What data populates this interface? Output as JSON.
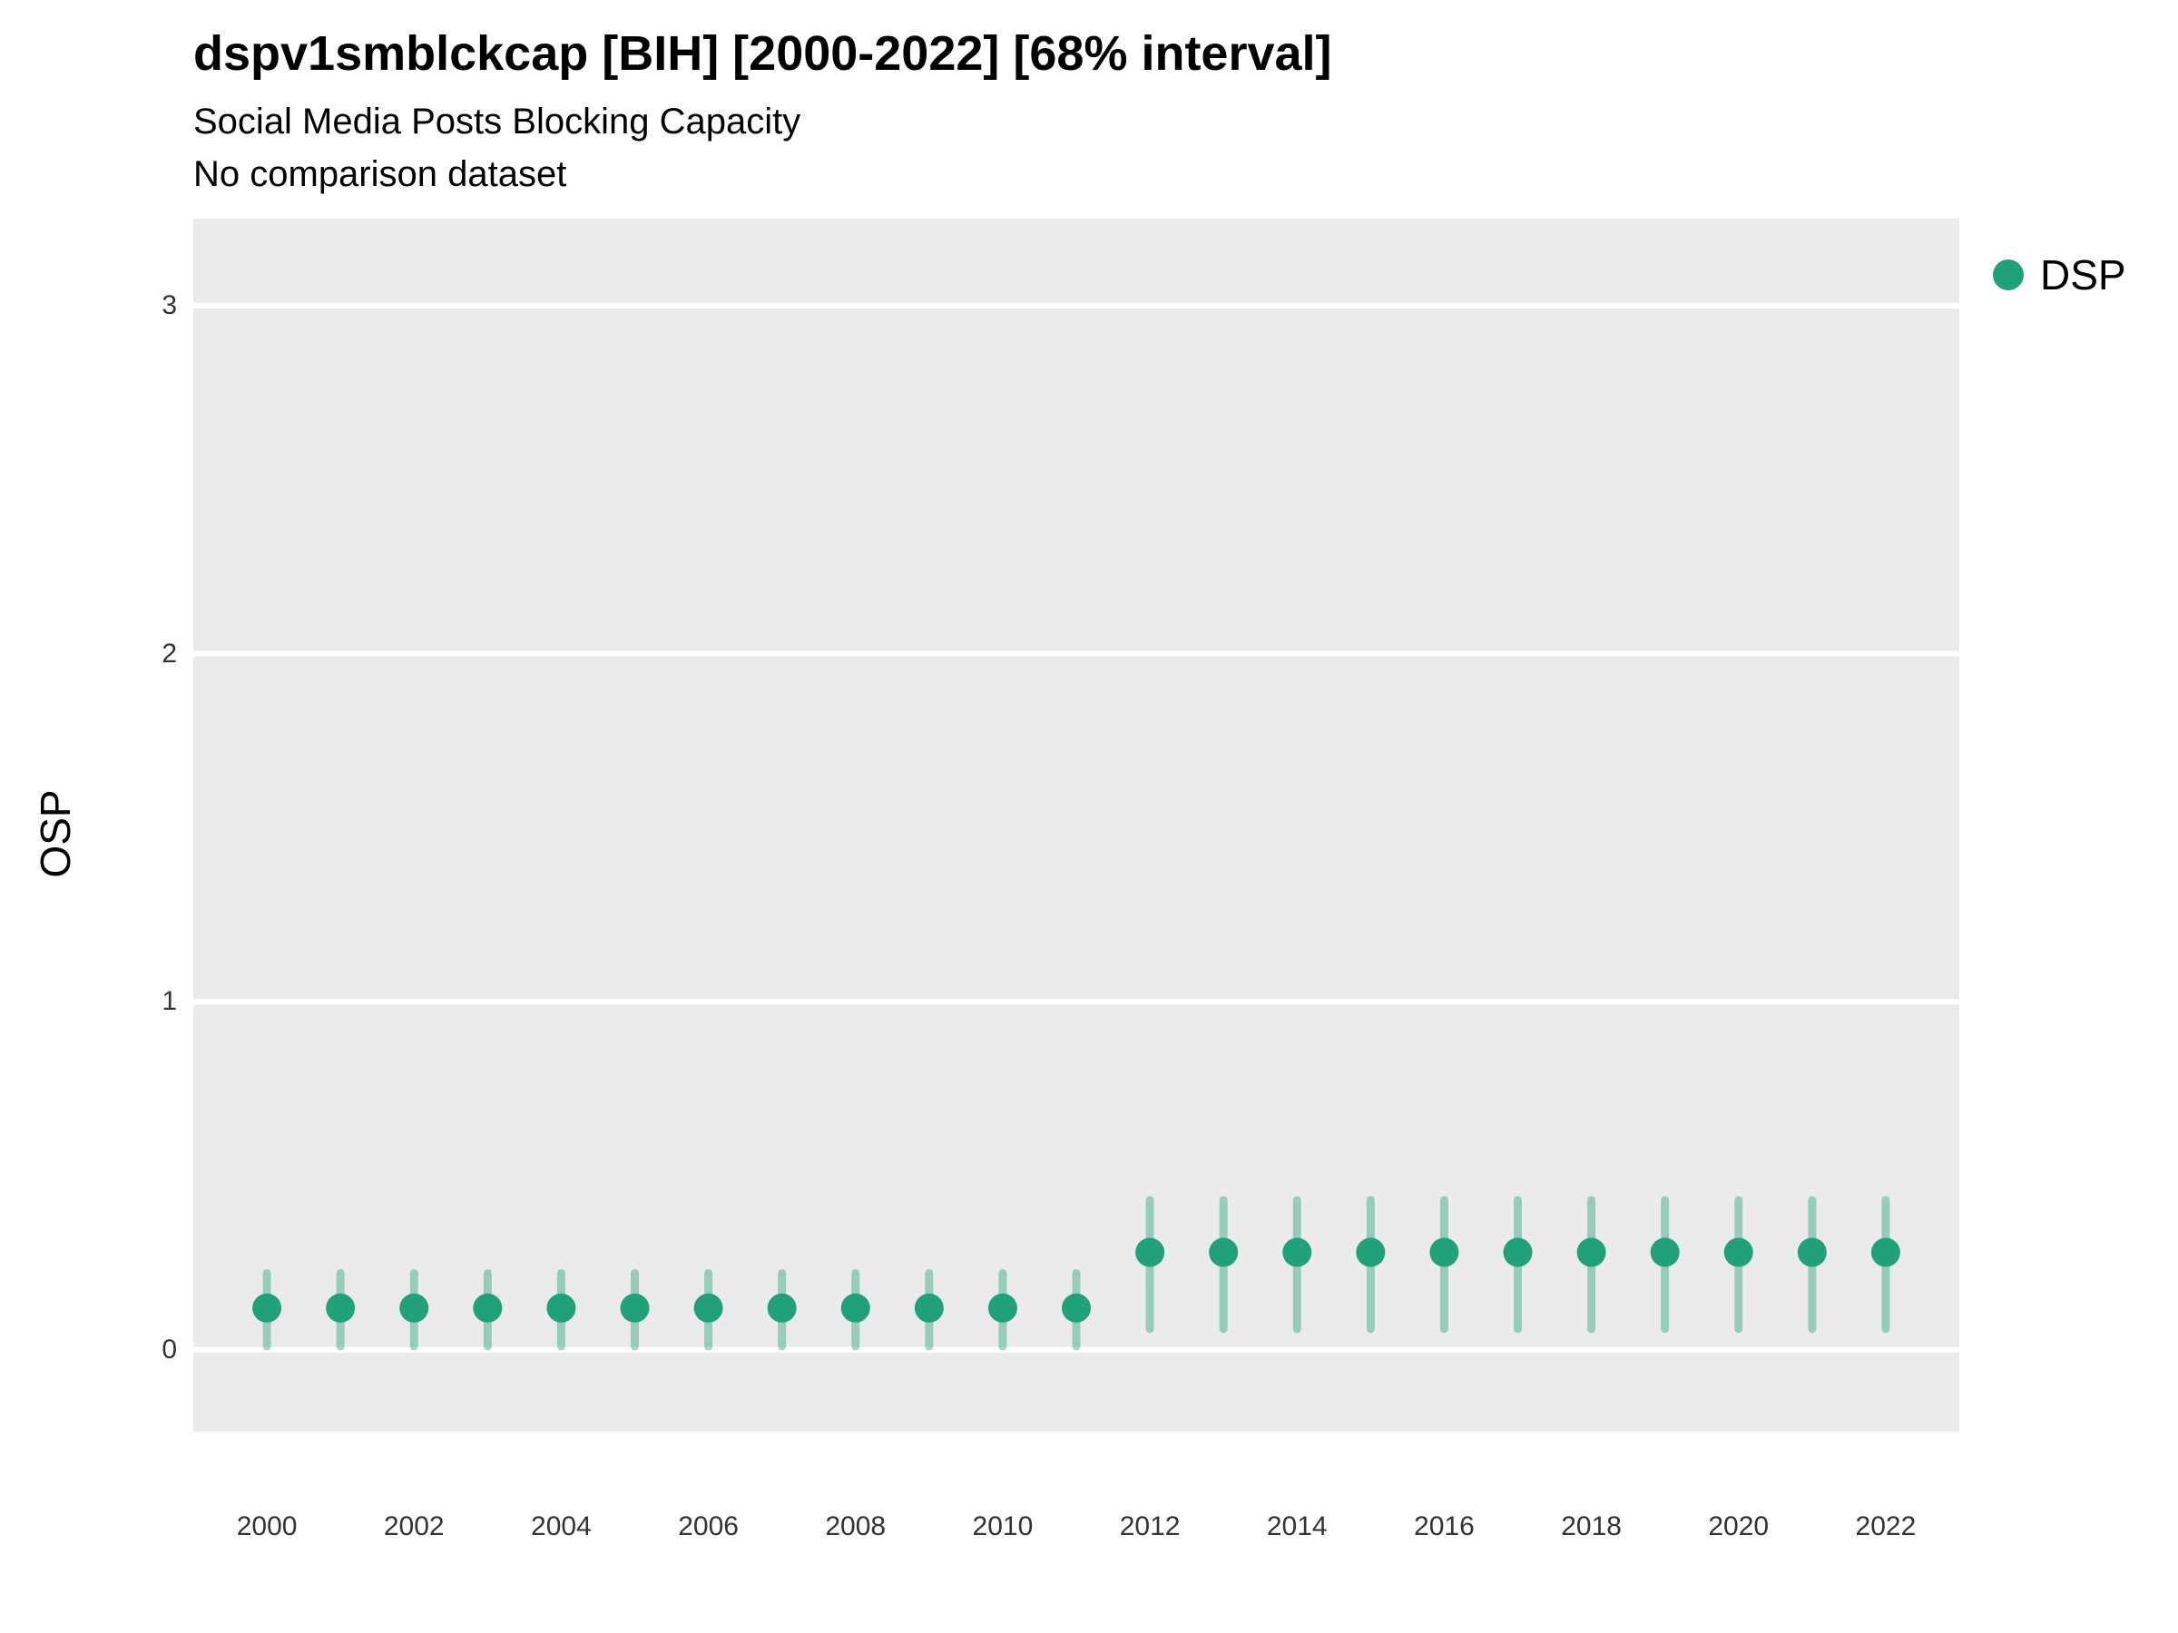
{
  "header": {
    "title": "dspv1smblckcap [BIH] [2000-2022] [68% interval]",
    "subtitle": "Social Media Posts Blocking Capacity",
    "note": "No comparison dataset"
  },
  "axes": {
    "y_label": "OSP",
    "y_ticks": [
      0,
      1,
      2,
      3
    ],
    "x_ticks": [
      2000,
      2002,
      2004,
      2006,
      2008,
      2010,
      2012,
      2014,
      2016,
      2018,
      2020,
      2022
    ]
  },
  "legend": {
    "items": [
      {
        "label": "DSP",
        "color": "#21a179"
      }
    ]
  },
  "chart_data": {
    "type": "scatter",
    "title": "dspv1smblckcap [BIH] [2000-2022] [68% interval]",
    "subtitle": "Social Media Posts Blocking Capacity",
    "note": "No comparison dataset",
    "xlabel": "",
    "ylabel": "OSP",
    "interval": "68%",
    "xlim": [
      1999,
      2023
    ],
    "ylim": [
      -0.235,
      3.25
    ],
    "grid": "horizontal-major-only",
    "legend_position": "right-top",
    "panel_bg": "#EBEBEB",
    "grid_color": "#FFFFFF",
    "point_color": "#21a179",
    "interval_color": "rgba(33,161,121,0.42)",
    "series": [
      {
        "name": "DSP",
        "x": [
          2000,
          2001,
          2002,
          2003,
          2004,
          2005,
          2006,
          2007,
          2008,
          2009,
          2010,
          2011,
          2012,
          2013,
          2014,
          2015,
          2016,
          2017,
          2018,
          2019,
          2020,
          2021,
          2022
        ],
        "y": [
          0.12,
          0.12,
          0.12,
          0.12,
          0.12,
          0.12,
          0.12,
          0.12,
          0.12,
          0.12,
          0.12,
          0.12,
          0.28,
          0.28,
          0.28,
          0.28,
          0.28,
          0.28,
          0.28,
          0.28,
          0.28,
          0.28,
          0.28
        ],
        "y_low": [
          0.01,
          0.01,
          0.01,
          0.01,
          0.01,
          0.01,
          0.01,
          0.01,
          0.01,
          0.01,
          0.01,
          0.01,
          0.06,
          0.06,
          0.06,
          0.06,
          0.06,
          0.06,
          0.06,
          0.06,
          0.06,
          0.06,
          0.06
        ],
        "y_high": [
          0.22,
          0.22,
          0.22,
          0.22,
          0.22,
          0.22,
          0.22,
          0.22,
          0.22,
          0.22,
          0.22,
          0.22,
          0.43,
          0.43,
          0.43,
          0.43,
          0.43,
          0.43,
          0.43,
          0.43,
          0.43,
          0.43,
          0.43
        ]
      }
    ]
  }
}
